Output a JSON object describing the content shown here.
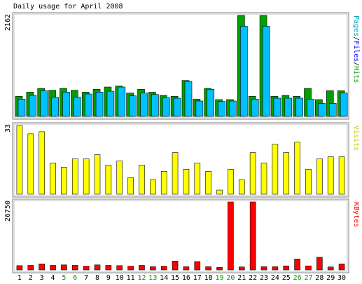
{
  "chart_data": {
    "type": "bar",
    "title": "Daily usage for April 2008",
    "categories": [
      "1",
      "2",
      "3",
      "4",
      "5",
      "6",
      "7",
      "8",
      "9",
      "10",
      "11",
      "12",
      "13",
      "14",
      "15",
      "16",
      "17",
      "18",
      "19",
      "20",
      "21",
      "22",
      "23",
      "24",
      "25",
      "26",
      "27",
      "28",
      "29",
      "30"
    ],
    "weekend_days": [
      5,
      6,
      12,
      13,
      19,
      20,
      26,
      27
    ],
    "colors": {
      "pages": "#00c0ff",
      "files": "#00c0ff",
      "hits": "#00a000",
      "visits": "#ffff00",
      "kbytes": "#ff0000",
      "weekend_label": "#00a000",
      "weekday_label": "#000000"
    },
    "panels": [
      {
        "id": "top",
        "max_label": "2162",
        "side_label": "Pages/Files/Hits",
        "side_label_parts": [
          {
            "text": "Pages",
            "color": "#00a0c0"
          },
          {
            "text": "/",
            "color": "#000000"
          },
          {
            "text": "Files",
            "color": "#0000ff"
          },
          {
            "text": "/",
            "color": "#000000"
          },
          {
            "text": "Hits",
            "color": "#00a000"
          }
        ],
        "ymax": 2162,
        "series": [
          {
            "key": "hits",
            "values": [
              430,
              520,
              600,
              560,
              600,
              560,
              520,
              580,
              630,
              650,
              500,
              580,
              520,
              450,
              430,
              770,
              370,
              600,
              360,
              360,
              2162,
              430,
              2162,
              430,
              450,
              430,
              600,
              360,
              550,
              550
            ]
          },
          {
            "key": "files",
            "values": [
              370,
              450,
              550,
              410,
              520,
              410,
              480,
              520,
              540,
              630,
              440,
              500,
              470,
              400,
              390,
              750,
              330,
              580,
              320,
              330,
              1930,
              370,
              1930,
              390,
              390,
              390,
              370,
              280,
              280,
              500
            ]
          }
        ]
      },
      {
        "id": "middle",
        "max_label": "33",
        "side_label": "Visits",
        "side_label_parts": [
          {
            "text": "Visits",
            "color": "#c8c800"
          }
        ],
        "ymax": 33,
        "series": [
          {
            "key": "visits",
            "values": [
              33,
              29,
              30,
              15,
              13,
              17,
              17,
              19,
              14,
              16,
              8,
              14,
              7,
              11,
              20,
              12,
              15,
              11,
              2,
              12,
              7,
              20,
              15,
              24,
              20,
              25,
              12,
              17,
              18,
              18
            ]
          }
        ]
      },
      {
        "id": "bottom",
        "max_label": "26750",
        "side_label": "KBytes",
        "side_label_parts": [
          {
            "text": "KBytes",
            "color": "#ff0000"
          }
        ],
        "ymax": 26750,
        "series": [
          {
            "key": "kbytes",
            "values": [
              1700,
              1800,
              2400,
              1800,
              2000,
              1800,
              1500,
              2000,
              1800,
              1700,
              1500,
              1800,
              1300,
              1500,
              3500,
              1300,
              3300,
              1300,
              1000,
              26750,
              1200,
              26750,
              1300,
              1300,
              1600,
              4300,
              1600,
              5000,
              1200,
              2400
            ]
          }
        ]
      }
    ]
  }
}
